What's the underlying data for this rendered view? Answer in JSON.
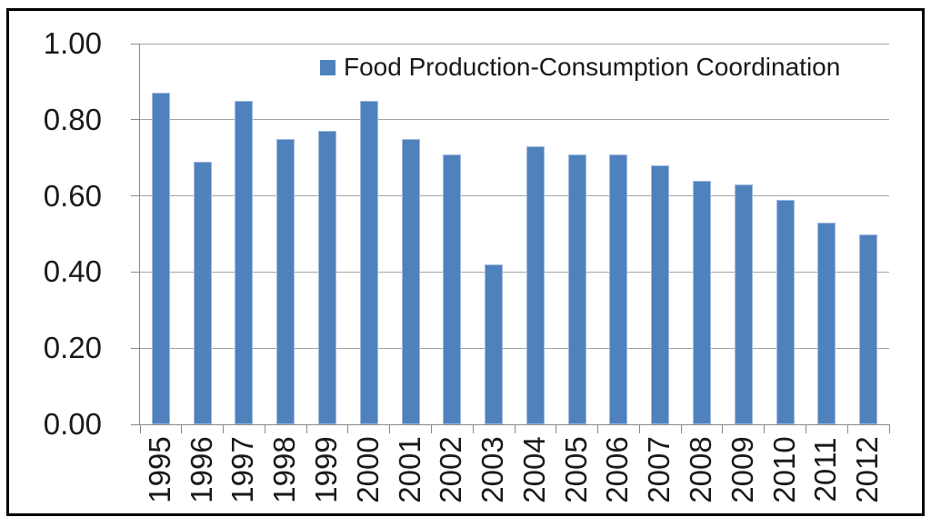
{
  "chart_data": {
    "type": "bar",
    "title": "",
    "legend": "Food Production-Consumption Coordination",
    "legend_position": "top-center",
    "categories": [
      "1995",
      "1996",
      "1997",
      "1998",
      "1999",
      "2000",
      "2001",
      "2002",
      "2003",
      "2004",
      "2005",
      "2006",
      "2007",
      "2008",
      "2009",
      "2010",
      "2011",
      "2012"
    ],
    "values": [
      0.87,
      0.69,
      0.85,
      0.75,
      0.77,
      0.85,
      0.75,
      0.71,
      0.42,
      0.73,
      0.71,
      0.71,
      0.68,
      0.64,
      0.63,
      0.59,
      0.53,
      0.5
    ],
    "xlabel": "",
    "ylabel": "",
    "ylim": [
      0,
      1
    ],
    "ytick_step": 0.2,
    "ytick_labels": [
      "0.00",
      "0.20",
      "0.40",
      "0.60",
      "0.80",
      "1.00"
    ],
    "grid": true
  },
  "colors": {
    "bar_fill": "#4F81BD",
    "bar_edge": "#9FBBDF",
    "gridline": "#A6A6A6",
    "axis": "#8A8A8A",
    "text": "#1A1A1A",
    "frame": "#000000",
    "background": "#FFFFFF"
  }
}
